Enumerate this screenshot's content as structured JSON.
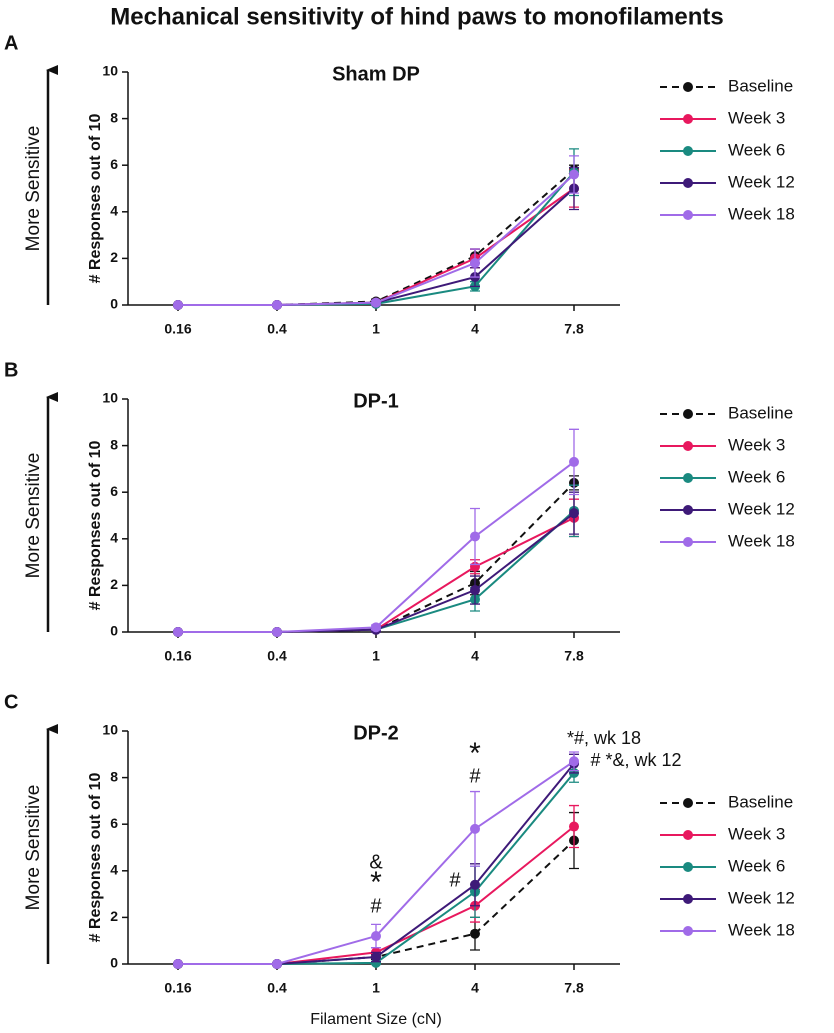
{
  "title": "Mechanical sensitivity of hind paws to monofilaments",
  "chart_data": [
    {
      "type": "line",
      "panel": "A",
      "title": "Sham DP",
      "arrow_label": "More Sensitive",
      "y_label": "# Responses out of 10",
      "categories": [
        "0.16",
        "0.4",
        "1",
        "4",
        "7.8"
      ],
      "ylim": [
        0,
        10
      ],
      "yticks": [
        0,
        2,
        4,
        6,
        8,
        10
      ],
      "legend": "upper right",
      "series": [
        {
          "name": "Baseline",
          "color": "#111111",
          "dashed": true,
          "values": [
            0,
            0,
            0.15,
            2.1,
            5.8
          ],
          "errors": [
            0,
            0,
            0.1,
            0.3,
            0.2
          ]
        },
        {
          "name": "Week 3",
          "color": "#e8185e",
          "dashed": false,
          "values": [
            0,
            0,
            0.1,
            2.0,
            5.0
          ],
          "errors": [
            0,
            0,
            0.1,
            0.4,
            0.8
          ]
        },
        {
          "name": "Week 6",
          "color": "#1a8a80",
          "dashed": false,
          "values": [
            0,
            0,
            0.05,
            0.8,
            5.7
          ],
          "errors": [
            0,
            0,
            0.05,
            0.2,
            1.0
          ]
        },
        {
          "name": "Week 12",
          "color": "#3e1a78",
          "dashed": false,
          "values": [
            0,
            0,
            0.1,
            1.2,
            5.0
          ],
          "errors": [
            0,
            0,
            0.1,
            0.4,
            0.9
          ]
        },
        {
          "name": "Week 18",
          "color": "#a06be8",
          "dashed": false,
          "values": [
            0,
            0,
            0.1,
            1.8,
            5.6
          ],
          "errors": [
            0,
            0,
            0.1,
            0.6,
            0.8
          ]
        }
      ]
    },
    {
      "type": "line",
      "panel": "B",
      "title": "DP-1",
      "arrow_label": "More Sensitive",
      "y_label": "# Responses out of 10",
      "categories": [
        "0.16",
        "0.4",
        "1",
        "4",
        "7.8"
      ],
      "ylim": [
        0,
        10
      ],
      "yticks": [
        0,
        2,
        4,
        6,
        8,
        10
      ],
      "legend": "center right",
      "series": [
        {
          "name": "Baseline",
          "color": "#111111",
          "dashed": true,
          "values": [
            0,
            0,
            0.1,
            2.1,
            6.4
          ],
          "errors": [
            0,
            0,
            0.1,
            0.5,
            0.3
          ]
        },
        {
          "name": "Week 3",
          "color": "#e8185e",
          "dashed": false,
          "values": [
            0,
            0,
            0.1,
            2.8,
            4.9
          ],
          "errors": [
            0,
            0,
            0.1,
            0.3,
            0.8
          ]
        },
        {
          "name": "Week 6",
          "color": "#1a8a80",
          "dashed": false,
          "values": [
            0,
            0,
            0.1,
            1.4,
            5.2
          ],
          "errors": [
            0,
            0,
            0.1,
            0.5,
            1.1
          ]
        },
        {
          "name": "Week 12",
          "color": "#3e1a78",
          "dashed": false,
          "values": [
            0,
            0,
            0.1,
            1.8,
            5.1
          ],
          "errors": [
            0,
            0,
            0.1,
            0.6,
            0.9
          ]
        },
        {
          "name": "Week 18",
          "color": "#a06be8",
          "dashed": false,
          "values": [
            0,
            0,
            0.2,
            4.1,
            7.3
          ],
          "errors": [
            0,
            0,
            0.1,
            1.2,
            1.4
          ]
        }
      ]
    },
    {
      "type": "line",
      "panel": "C",
      "title": "DP-2",
      "arrow_label": "More Sensitive",
      "y_label": "# Responses out of 10",
      "x_label": "Filament Size (cN)",
      "categories": [
        "0.16",
        "0.4",
        "1",
        "4",
        "7.8"
      ],
      "ylim": [
        0,
        10
      ],
      "yticks": [
        0,
        2,
        4,
        6,
        8,
        10
      ],
      "legend": "lower right",
      "series": [
        {
          "name": "Baseline",
          "color": "#111111",
          "dashed": true,
          "values": [
            0,
            0,
            0.3,
            1.3,
            5.3
          ],
          "errors": [
            0,
            0,
            0.1,
            0.7,
            1.2
          ]
        },
        {
          "name": "Week 3",
          "color": "#e8185e",
          "dashed": false,
          "values": [
            0,
            0,
            0.5,
            2.5,
            5.9
          ],
          "errors": [
            0,
            0,
            0.2,
            0.7,
            0.9
          ]
        },
        {
          "name": "Week 6",
          "color": "#1a8a80",
          "dashed": false,
          "values": [
            0,
            0,
            0.05,
            3.1,
            8.2
          ],
          "errors": [
            0,
            0,
            0.05,
            1.1,
            0.4
          ]
        },
        {
          "name": "Week 12",
          "color": "#3e1a78",
          "dashed": false,
          "values": [
            0,
            0,
            0.3,
            3.4,
            8.6
          ],
          "errors": [
            0,
            0,
            0.2,
            0.9,
            0.4
          ]
        },
        {
          "name": "Week 18",
          "color": "#a06be8",
          "dashed": false,
          "values": [
            0,
            0,
            1.2,
            5.8,
            8.7
          ],
          "errors": [
            0,
            0,
            0.5,
            1.6,
            0.4
          ]
        }
      ],
      "annotations": [
        "&",
        "*",
        "#",
        "#",
        "*",
        "#",
        "*#, wk 18",
        "# *&, wk 12"
      ]
    }
  ]
}
